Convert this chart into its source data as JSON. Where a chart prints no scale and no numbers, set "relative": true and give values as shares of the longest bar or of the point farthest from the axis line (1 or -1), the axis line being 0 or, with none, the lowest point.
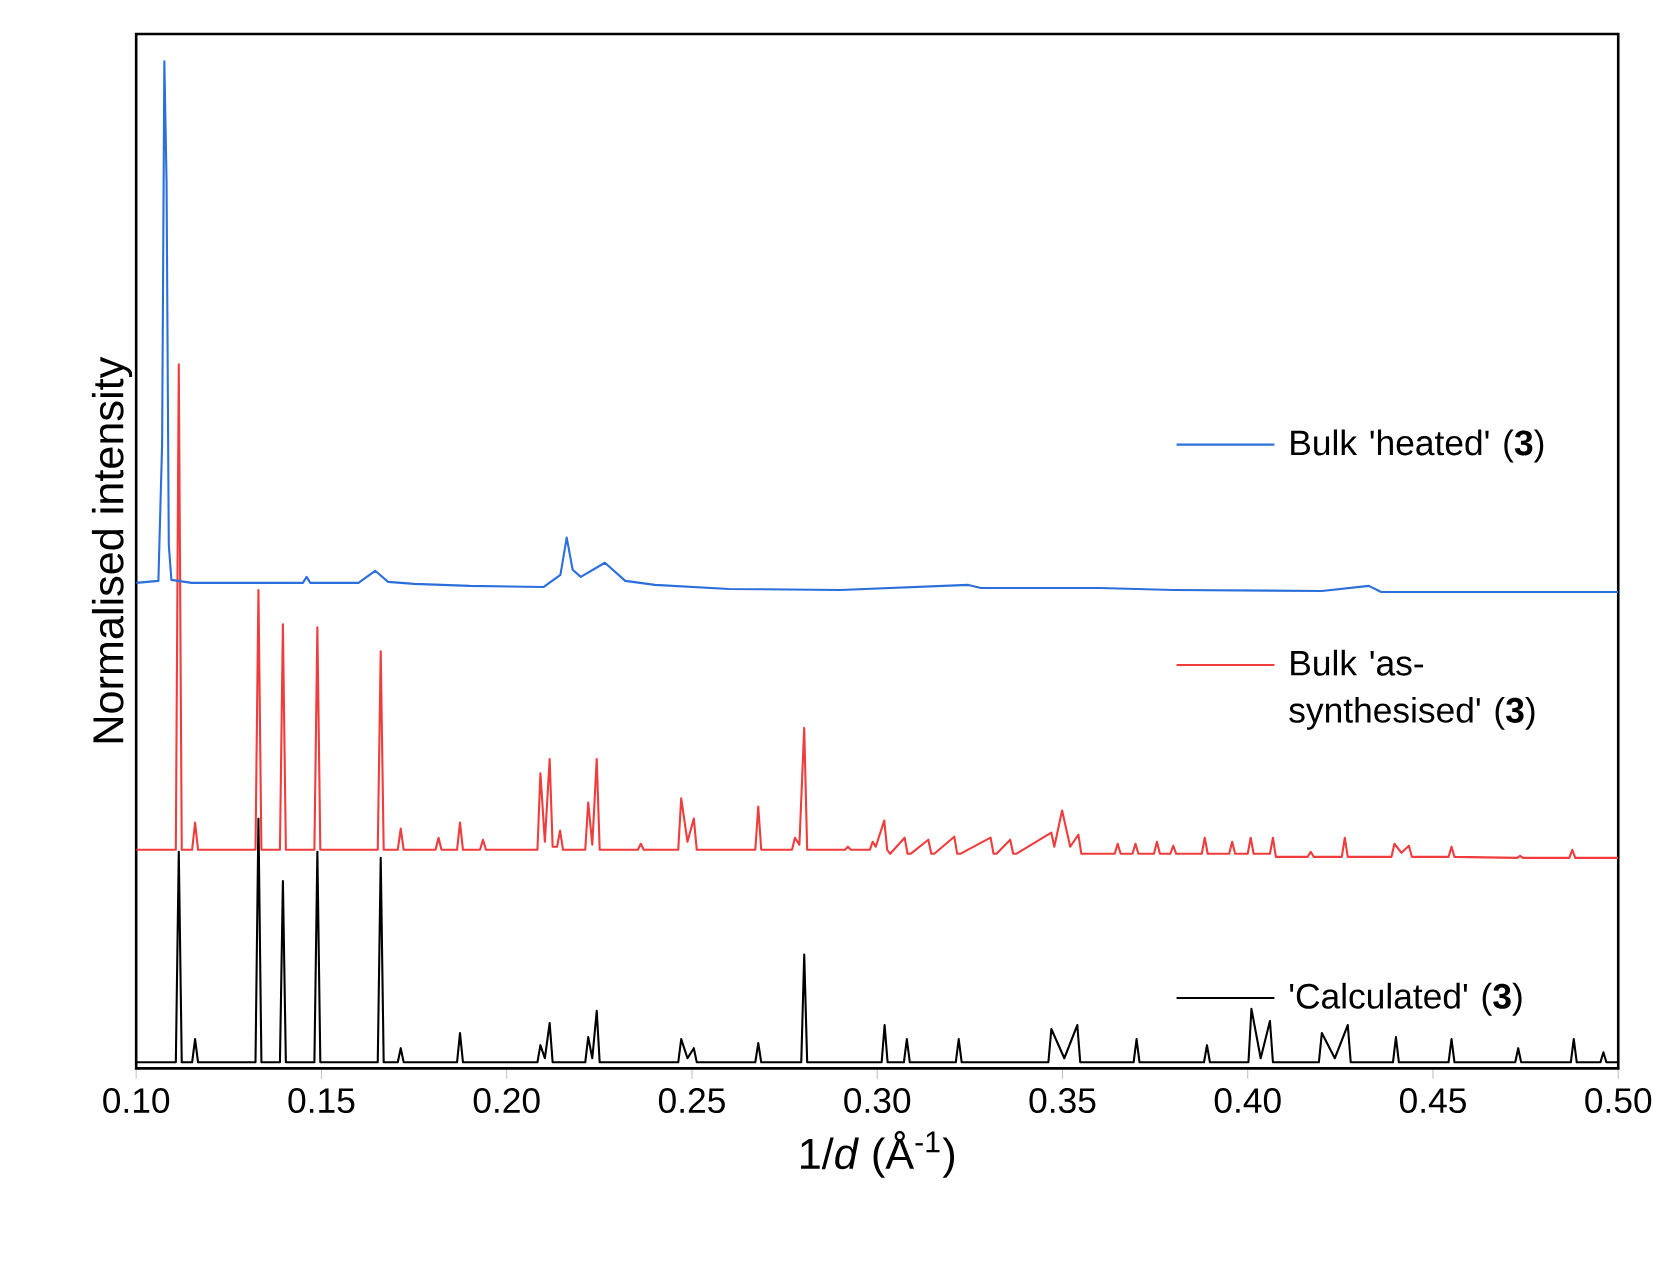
{
  "chart_data": {
    "type": "line",
    "relative": true,
    "xlabel": "1/*d* (Å$^{-1}$)",
    "ylabel": "Normalised intensity",
    "xlim": [
      0.1,
      0.5
    ],
    "xticks": [
      {
        "value": 0.1,
        "label": "0.10"
      },
      {
        "value": 0.15,
        "label": "0.15"
      },
      {
        "value": 0.2,
        "label": "0.20"
      },
      {
        "value": 0.25,
        "label": "0.25"
      },
      {
        "value": 0.3,
        "label": "0.30"
      },
      {
        "value": 0.35,
        "label": "0.35"
      },
      {
        "value": 0.4,
        "label": "0.40"
      },
      {
        "value": 0.45,
        "label": "0.45"
      },
      {
        "value": 0.5,
        "label": "0.50"
      }
    ],
    "legend": "right",
    "marker": "none",
    "line_style": "solid",
    "series": [
      {
        "name": "Bulk 'heated' (**3**)",
        "color": "#2a6fdb",
        "x": [
          0.1,
          0.106,
          0.107,
          0.1076,
          0.1082,
          0.1088,
          0.1095,
          0.115,
          0.145,
          0.146,
          0.147,
          0.16,
          0.1645,
          0.168,
          0.175,
          0.19,
          0.21,
          0.2145,
          0.2162,
          0.2178,
          0.22,
          0.2265,
          0.232,
          0.24,
          0.26,
          0.29,
          0.3246,
          0.328,
          0.36,
          0.38,
          0.42,
          0.4327,
          0.436,
          0.47,
          0.5
        ],
        "values": [
          0.482,
          0.484,
          0.62,
          1.0,
          0.88,
          0.52,
          0.485,
          0.482,
          0.482,
          0.488,
          0.482,
          0.482,
          0.494,
          0.483,
          0.481,
          0.479,
          0.478,
          0.49,
          0.527,
          0.495,
          0.488,
          0.502,
          0.484,
          0.48,
          0.476,
          0.475,
          0.48,
          0.477,
          0.477,
          0.475,
          0.474,
          0.479,
          0.473,
          0.473,
          0.473
        ]
      },
      {
        "name": "Bulk 'as-synthesised' (**3**)",
        "color": "#f03c3c",
        "x": [
          0.1,
          0.1107,
          0.1115,
          0.1123,
          0.1151,
          0.1159,
          0.1167,
          0.1322,
          0.133,
          0.1338,
          0.1388,
          0.1396,
          0.1404,
          0.1481,
          0.1489,
          0.1497,
          0.1652,
          0.166,
          0.1668,
          0.1706,
          0.1714,
          0.1722,
          0.1808,
          0.1816,
          0.1824,
          0.1866,
          0.1874,
          0.1882,
          0.1928,
          0.1936,
          0.1944,
          0.2083,
          0.2091,
          0.2103,
          0.2116,
          0.2124,
          0.2136,
          0.2144,
          0.2152,
          0.2212,
          0.222,
          0.2231,
          0.2243,
          0.2251,
          0.2354,
          0.2362,
          0.237,
          0.2463,
          0.2471,
          0.2488,
          0.2505,
          0.2513,
          0.2671,
          0.2679,
          0.2687,
          0.277,
          0.2778,
          0.279,
          0.2803,
          0.2811,
          0.2913,
          0.2921,
          0.2929,
          0.298,
          0.2988,
          0.2996,
          0.3019,
          0.3027,
          0.3035,
          0.3074,
          0.3082,
          0.309,
          0.3138,
          0.3146,
          0.3154,
          0.3208,
          0.3216,
          0.3224,
          0.3306,
          0.3314,
          0.3322,
          0.3359,
          0.3367,
          0.3375,
          0.347,
          0.3478,
          0.3499,
          0.3521,
          0.3543,
          0.3551,
          0.3641,
          0.3649,
          0.3657,
          0.3689,
          0.3697,
          0.3705,
          0.3747,
          0.3755,
          0.3763,
          0.3791,
          0.3799,
          0.3807,
          0.3876,
          0.3884,
          0.3892,
          0.395,
          0.3958,
          0.3966,
          0.4,
          0.4008,
          0.4016,
          0.406,
          0.4068,
          0.4076,
          0.4162,
          0.417,
          0.4178,
          0.4254,
          0.4262,
          0.427,
          0.4388,
          0.4396,
          0.4415,
          0.4435,
          0.4443,
          0.4542,
          0.455,
          0.4558,
          0.4727,
          0.4735,
          0.4743,
          0.4868,
          0.4876,
          0.4884,
          0.5
        ],
        "values": [
          0.217,
          0.217,
          0.699,
          0.217,
          0.217,
          0.244,
          0.217,
          0.217,
          0.475,
          0.217,
          0.217,
          0.441,
          0.217,
          0.217,
          0.438,
          0.217,
          0.217,
          0.414,
          0.217,
          0.217,
          0.238,
          0.217,
          0.217,
          0.229,
          0.217,
          0.217,
          0.244,
          0.217,
          0.217,
          0.227,
          0.217,
          0.217,
          0.293,
          0.225,
          0.307,
          0.22,
          0.22,
          0.236,
          0.217,
          0.217,
          0.264,
          0.222,
          0.307,
          0.217,
          0.217,
          0.223,
          0.217,
          0.217,
          0.268,
          0.225,
          0.248,
          0.217,
          0.217,
          0.26,
          0.217,
          0.217,
          0.229,
          0.222,
          0.338,
          0.217,
          0.217,
          0.22,
          0.217,
          0.217,
          0.225,
          0.22,
          0.246,
          0.217,
          0.213,
          0.229,
          0.213,
          0.213,
          0.227,
          0.213,
          0.213,
          0.23,
          0.213,
          0.213,
          0.229,
          0.213,
          0.213,
          0.227,
          0.213,
          0.213,
          0.234,
          0.22,
          0.256,
          0.22,
          0.232,
          0.213,
          0.213,
          0.223,
          0.213,
          0.213,
          0.223,
          0.213,
          0.213,
          0.225,
          0.213,
          0.213,
          0.221,
          0.213,
          0.213,
          0.229,
          0.213,
          0.213,
          0.225,
          0.213,
          0.213,
          0.229,
          0.213,
          0.213,
          0.229,
          0.21,
          0.21,
          0.215,
          0.21,
          0.21,
          0.229,
          0.21,
          0.21,
          0.223,
          0.214,
          0.221,
          0.21,
          0.21,
          0.22,
          0.21,
          0.209,
          0.211,
          0.209,
          0.209,
          0.217,
          0.209,
          0.209
        ]
      },
      {
        "name": "'Calculated' (**3**)",
        "color": "#000000",
        "x": [
          0.1,
          0.1107,
          0.1115,
          0.1123,
          0.1151,
          0.1159,
          0.1167,
          0.1322,
          0.133,
          0.1338,
          0.1388,
          0.1396,
          0.1404,
          0.1481,
          0.1489,
          0.1497,
          0.1652,
          0.166,
          0.1668,
          0.1706,
          0.1714,
          0.1722,
          0.1866,
          0.1874,
          0.1882,
          0.2083,
          0.2091,
          0.2103,
          0.2116,
          0.2124,
          0.2212,
          0.222,
          0.2231,
          0.2243,
          0.2251,
          0.2463,
          0.2471,
          0.2488,
          0.2505,
          0.2513,
          0.2671,
          0.2679,
          0.2687,
          0.2795,
          0.2803,
          0.2811,
          0.3012,
          0.302,
          0.3028,
          0.3072,
          0.308,
          0.3088,
          0.3212,
          0.322,
          0.3228,
          0.3462,
          0.347,
          0.3505,
          0.354,
          0.3548,
          0.3692,
          0.37,
          0.3708,
          0.3882,
          0.389,
          0.3898,
          0.4002,
          0.401,
          0.4035,
          0.406,
          0.4068,
          0.4192,
          0.42,
          0.4235,
          0.427,
          0.4278,
          0.4392,
          0.44,
          0.4408,
          0.4542,
          0.455,
          0.4558,
          0.4722,
          0.473,
          0.4738,
          0.4872,
          0.488,
          0.4888,
          0.4952,
          0.496,
          0.4968,
          0.5
        ],
        "values": [
          0.006,
          0.006,
          0.215,
          0.006,
          0.006,
          0.029,
          0.006,
          0.006,
          0.248,
          0.006,
          0.006,
          0.186,
          0.006,
          0.006,
          0.215,
          0.006,
          0.006,
          0.209,
          0.006,
          0.006,
          0.02,
          0.006,
          0.006,
          0.035,
          0.006,
          0.006,
          0.023,
          0.01,
          0.045,
          0.006,
          0.006,
          0.031,
          0.01,
          0.057,
          0.006,
          0.006,
          0.029,
          0.01,
          0.02,
          0.006,
          0.006,
          0.025,
          0.006,
          0.006,
          0.113,
          0.006,
          0.006,
          0.043,
          0.006,
          0.006,
          0.029,
          0.006,
          0.006,
          0.029,
          0.006,
          0.006,
          0.039,
          0.01,
          0.043,
          0.006,
          0.006,
          0.029,
          0.006,
          0.006,
          0.023,
          0.006,
          0.006,
          0.059,
          0.01,
          0.047,
          0.006,
          0.006,
          0.035,
          0.01,
          0.043,
          0.006,
          0.006,
          0.031,
          0.006,
          0.006,
          0.029,
          0.006,
          0.006,
          0.02,
          0.006,
          0.006,
          0.029,
          0.006,
          0.006,
          0.016,
          0.006,
          0.006
        ]
      }
    ]
  }
}
